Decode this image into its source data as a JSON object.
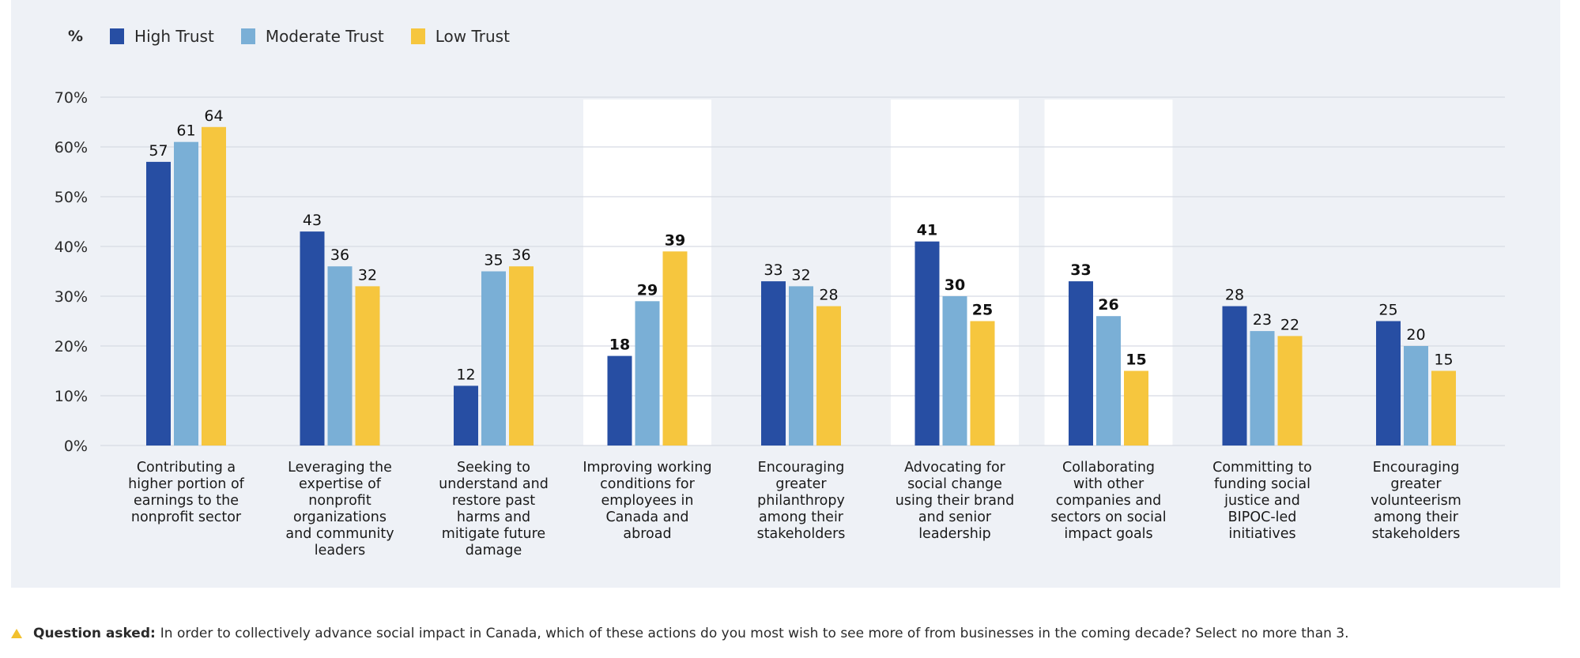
{
  "colors": {
    "high": "#274ea3",
    "moderate": "#7aafd6",
    "low": "#f6c63e",
    "panel": "#eef1f6",
    "highlight": "#ffffff",
    "grid": "#d6dbe4",
    "footer_icon": "#f2c12e"
  },
  "legend": {
    "unit": "%",
    "items": [
      "High Trust",
      "Moderate Trust",
      "Low Trust"
    ]
  },
  "chart_data": {
    "type": "bar",
    "title": "",
    "xlabel": "",
    "ylabel": "%",
    "ylim": [
      0,
      70
    ],
    "yticks": [
      "0%",
      "10%",
      "20%",
      "30%",
      "40%",
      "50%",
      "60%",
      "70%"
    ],
    "grid": true,
    "legend_position": "top-left",
    "categories": [
      [
        "Contributing a",
        "higher portion of",
        "earnings to the",
        "nonprofit sector"
      ],
      [
        "Leveraging the",
        "expertise of",
        "nonprofit",
        "organizations",
        "and community",
        "leaders"
      ],
      [
        "Seeking to",
        "understand and",
        "restore past",
        "harms and",
        "mitigate future",
        "damage"
      ],
      [
        "Improving working",
        "conditions for",
        "employees in",
        "Canada and",
        "abroad"
      ],
      [
        "Encouraging",
        "greater",
        "philanthropy",
        "among their",
        "stakeholders"
      ],
      [
        "Advocating for",
        "social change",
        "using their brand",
        "and senior",
        "leadership"
      ],
      [
        "Collaborating",
        "with other",
        "companies and",
        "sectors on social",
        "impact goals"
      ],
      [
        "Committing to",
        "funding social",
        "justice and",
        "BIPOC-led",
        "initiatives"
      ],
      [
        "Encouraging",
        "greater",
        "volunteerism",
        "among their",
        "stakeholders"
      ]
    ],
    "highlighted_categories": [
      3,
      5,
      6
    ],
    "series": [
      {
        "name": "High Trust",
        "values": [
          57,
          43,
          12,
          18,
          33,
          41,
          33,
          28,
          25
        ]
      },
      {
        "name": "Moderate Trust",
        "values": [
          61,
          36,
          35,
          29,
          32,
          30,
          26,
          23,
          20
        ]
      },
      {
        "name": "Low Trust",
        "values": [
          64,
          32,
          36,
          39,
          28,
          25,
          15,
          22,
          15
        ]
      }
    ]
  },
  "footer": {
    "label": "Question asked:",
    "text": "In order to collectively advance social impact in Canada, which of these actions do you most wish to see more of from businesses in the coming decade? Select no more than 3."
  }
}
